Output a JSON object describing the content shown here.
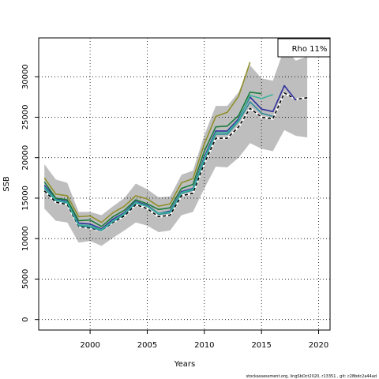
{
  "chart_data": {
    "type": "line",
    "title": "",
    "xlabel": "Years",
    "ylabel": "SSB",
    "xlim": [
      1995.5,
      2021
    ],
    "ylim": [
      -1300,
      34800
    ],
    "x_ticks": [
      2000,
      2005,
      2010,
      2015,
      2020
    ],
    "y_ticks": [
      0,
      5000,
      10000,
      15000,
      20000,
      25000,
      30000
    ],
    "grid": true,
    "legend_text": "Rho 11%",
    "legend_position": "top-right",
    "footer_text": "stockassessment.org, lingSbOct2020, r13351 , git: c28bdc2a44ad",
    "band": {
      "color": "#bebebe",
      "x": [
        1996,
        1997,
        1998,
        1999,
        2000,
        2001,
        2002,
        2003,
        2004,
        2005,
        2006,
        2007,
        2008,
        2009,
        2010,
        2011,
        2012,
        2013,
        2014,
        2015,
        2016,
        2017,
        2018,
        2019
      ],
      "lower": [
        13700,
        12200,
        12000,
        9500,
        9700,
        9100,
        10100,
        11000,
        12000,
        11600,
        10800,
        11000,
        12900,
        13300,
        16200,
        18900,
        18800,
        20000,
        21800,
        21100,
        20800,
        23400,
        22700,
        22500
      ],
      "upper": [
        19200,
        17300,
        16900,
        13300,
        13300,
        12900,
        14000,
        15000,
        16800,
        16100,
        15100,
        15200,
        17900,
        18400,
        22800,
        26400,
        26400,
        28100,
        31400,
        29800,
        29500,
        33500,
        32000,
        32500
      ]
    },
    "series": [
      {
        "color": "#000000",
        "dashed": true,
        "width": 1.6,
        "x": [
          1996,
          1997,
          1998,
          1999,
          2000,
          2001,
          2002,
          2003,
          2004,
          2005,
          2006,
          2007,
          2008,
          2009,
          2010,
          2011,
          2012,
          2013,
          2014,
          2015,
          2016,
          2017,
          2018,
          2019
        ],
        "values": [
          15900,
          14500,
          14200,
          11500,
          11300,
          11000,
          12000,
          12800,
          14200,
          13700,
          12700,
          12900,
          15300,
          15600,
          19300,
          22400,
          22400,
          23800,
          26100,
          25000,
          24800,
          28000,
          27200,
          27400
        ]
      },
      {
        "color": "#2e8b9a",
        "width": 1.6,
        "x": [
          1996,
          1997,
          1998,
          1999,
          2000,
          2001,
          2002,
          2003,
          2004,
          2005,
          2006,
          2007,
          2008,
          2009,
          2010,
          2011,
          2012,
          2013,
          2014,
          2015,
          2016
        ],
        "values": [
          16200,
          14700,
          14400,
          11600,
          11400,
          11000,
          12100,
          13000,
          14400,
          14000,
          13000,
          13200,
          15600,
          16000,
          19700,
          22900,
          22900,
          24500,
          26900,
          25500,
          25100
        ]
      },
      {
        "color": "#2f2f9f",
        "width": 1.6,
        "x": [
          1996,
          1997,
          1998,
          1999,
          2000,
          2001,
          2002,
          2003,
          2004,
          2005,
          2006,
          2007,
          2008,
          2009,
          2010,
          2011,
          2012,
          2013,
          2014,
          2015,
          2016,
          2017,
          2018
        ],
        "values": [
          16600,
          14900,
          14600,
          11900,
          11800,
          11200,
          12400,
          13200,
          14600,
          14100,
          13100,
          13400,
          15800,
          16200,
          20100,
          23300,
          23300,
          24800,
          27500,
          26000,
          25700,
          28900,
          27100
        ]
      },
      {
        "color": "#3cb39b",
        "width": 1.6,
        "x": [
          1996,
          1997,
          1998,
          1999,
          2000,
          2001,
          2002,
          2003,
          2004,
          2005,
          2006,
          2007,
          2008,
          2009,
          2010,
          2011,
          2012,
          2013,
          2014,
          2015,
          2016
        ],
        "values": [
          16400,
          14800,
          14500,
          11700,
          11600,
          11100,
          12200,
          13100,
          14500,
          14000,
          13100,
          13300,
          15700,
          16100,
          19900,
          23100,
          23100,
          24600,
          27700,
          27300,
          27800
        ]
      },
      {
        "color": "#1a7a3a",
        "width": 1.6,
        "x": [
          1996,
          1997,
          1998,
          1999,
          2000,
          2001,
          2002,
          2003,
          2004,
          2005,
          2006,
          2007,
          2008,
          2009,
          2010,
          2011,
          2012,
          2013,
          2014,
          2015
        ],
        "values": [
          17000,
          15000,
          14800,
          12200,
          12300,
          11500,
          12700,
          13500,
          14800,
          14300,
          13600,
          13800,
          16200,
          16700,
          20800,
          23800,
          23900,
          25200,
          28100,
          27900
        ]
      },
      {
        "color": "#8f8f2a",
        "width": 1.6,
        "x": [
          1996,
          1997,
          1998,
          1999,
          2000,
          2001,
          2002,
          2003,
          2004,
          2005,
          2006,
          2007,
          2008,
          2009,
          2010,
          2011,
          2012,
          2013,
          2014
        ],
        "values": [
          17500,
          15500,
          15300,
          12700,
          12800,
          12000,
          13200,
          14000,
          15300,
          14900,
          14000,
          14300,
          16900,
          17400,
          21700,
          25100,
          25600,
          27600,
          31800
        ]
      }
    ]
  }
}
